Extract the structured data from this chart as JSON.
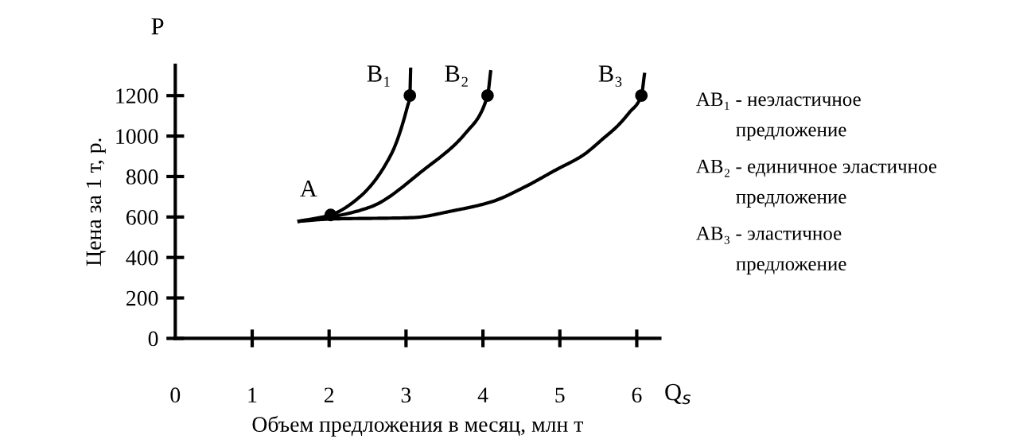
{
  "chart_data": {
    "type": "line",
    "xlabel": "Объем предложения в месяц, млн т",
    "ylabel": "Цена за 1 т, р.",
    "xlim": [
      0,
      6.3
    ],
    "ylim": [
      0,
      1350
    ],
    "xticks": [
      0,
      1,
      2,
      3,
      4,
      5,
      6
    ],
    "yticks": [
      0,
      200,
      400,
      600,
      800,
      1000,
      1200
    ],
    "grid": false,
    "legend": false,
    "line_style": "solid",
    "series": [
      {
        "color": "#000000",
        "marker": "none",
        "x": [
          1.61,
          2.02,
          2.4,
          2.81,
          3.02,
          3.05,
          3.06
        ],
        "values": [
          579,
          610,
          700,
          912,
          1148,
          1200,
          1330
        ]
      },
      {
        "color": "#000000",
        "marker": "none",
        "x": [
          1.61,
          2.02,
          2.54,
          3.23,
          3.78,
          4.06,
          4.1
        ],
        "values": [
          579,
          600,
          650,
          833,
          1017,
          1200,
          1318
        ]
      },
      {
        "color": "#000000",
        "marker": "none",
        "x": [
          1.61,
          2.02,
          3.09,
          3.6,
          4.12,
          4.5,
          4.95,
          5.3,
          5.57,
          5.75,
          5.9,
          6.06,
          6.1
        ],
        "values": [
          579,
          590,
          597,
          630,
          676,
          740,
          833,
          905,
          990,
          1050,
          1115,
          1200,
          1305
        ]
      },
      {
        "type": "scatter",
        "color": "#000000",
        "marker": "circle",
        "x": [
          2.02,
          3.05,
          4.06,
          6.06
        ],
        "values": [
          610,
          1200,
          1200,
          1200
        ]
      }
    ],
    "annotations": [
      "P",
      "Q$_{s}$",
      "AB₁ - неэластичное\n        предложение",
      "AB₂ - единичное эластичное\n        предложение",
      "AB₃ - эластичное\n        предложение",
      {
        "text": "A",
        "x": 2.02,
        "y": 610
      },
      {
        "text": "B₁",
        "x": 3.05,
        "y": 1200
      },
      {
        "text": "B₂",
        "x": 4.06,
        "y": 1200
      },
      {
        "text": "B₃",
        "x": 6.06,
        "y": 1200
      }
    ]
  }
}
